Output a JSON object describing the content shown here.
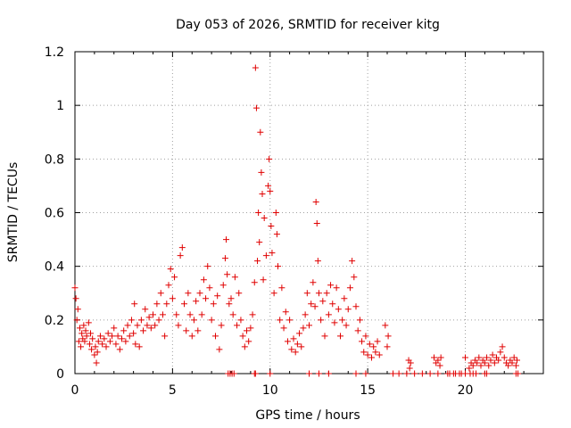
{
  "chart_data": {
    "type": "scatter",
    "title": "Day 053 of 2026, SRMTID for receiver kitg",
    "xlabel": "GPS time / hours",
    "ylabel": "SRMTID / TECUs",
    "xlim": [
      0,
      24
    ],
    "ylim": [
      0,
      1.2
    ],
    "xticks": [
      "0",
      "5",
      "10",
      "15",
      "20"
    ],
    "yticks": [
      "0",
      "0.2",
      "0.4",
      "0.6",
      "0.8",
      "1",
      "1.2"
    ],
    "grid": true,
    "marker": "+",
    "color": "#e00000",
    "series": [
      {
        "name": "SRMTID",
        "points": [
          [
            0.0,
            0.32
          ],
          [
            0.05,
            0.28
          ],
          [
            0.1,
            0.2
          ],
          [
            0.15,
            0.24
          ],
          [
            0.2,
            0.12
          ],
          [
            0.25,
            0.17
          ],
          [
            0.3,
            0.1
          ],
          [
            0.35,
            0.15
          ],
          [
            0.4,
            0.13
          ],
          [
            0.45,
            0.18
          ],
          [
            0.5,
            0.12
          ],
          [
            0.55,
            0.16
          ],
          [
            0.6,
            0.14
          ],
          [
            0.7,
            0.19
          ],
          [
            0.75,
            0.11
          ],
          [
            0.8,
            0.15
          ],
          [
            0.85,
            0.09
          ],
          [
            0.9,
            0.13
          ],
          [
            1.0,
            0.07
          ],
          [
            1.05,
            0.1
          ],
          [
            1.1,
            0.04
          ],
          [
            1.15,
            0.08
          ],
          [
            1.2,
            0.12
          ],
          [
            1.3,
            0.14
          ],
          [
            1.4,
            0.11
          ],
          [
            1.5,
            0.13
          ],
          [
            1.6,
            0.1
          ],
          [
            1.7,
            0.15
          ],
          [
            1.8,
            0.12
          ],
          [
            1.9,
            0.14
          ],
          [
            2.0,
            0.17
          ],
          [
            2.1,
            0.11
          ],
          [
            2.2,
            0.14
          ],
          [
            2.3,
            0.09
          ],
          [
            2.4,
            0.13
          ],
          [
            2.5,
            0.16
          ],
          [
            2.6,
            0.12
          ],
          [
            2.7,
            0.18
          ],
          [
            2.8,
            0.14
          ],
          [
            2.9,
            0.2
          ],
          [
            3.0,
            0.15
          ],
          [
            3.05,
            0.26
          ],
          [
            3.1,
            0.11
          ],
          [
            3.2,
            0.18
          ],
          [
            3.3,
            0.1
          ],
          [
            3.4,
            0.2
          ],
          [
            3.5,
            0.16
          ],
          [
            3.6,
            0.24
          ],
          [
            3.7,
            0.18
          ],
          [
            3.8,
            0.21
          ],
          [
            3.9,
            0.17
          ],
          [
            4.0,
            0.22
          ],
          [
            4.1,
            0.18
          ],
          [
            4.2,
            0.26
          ],
          [
            4.3,
            0.2
          ],
          [
            4.4,
            0.3
          ],
          [
            4.5,
            0.22
          ],
          [
            4.6,
            0.14
          ],
          [
            4.7,
            0.26
          ],
          [
            4.8,
            0.33
          ],
          [
            4.9,
            0.39
          ],
          [
            5.0,
            0.28
          ],
          [
            5.1,
            0.36
          ],
          [
            5.2,
            0.22
          ],
          [
            5.3,
            0.18
          ],
          [
            5.4,
            0.44
          ],
          [
            5.5,
            0.47
          ],
          [
            5.6,
            0.26
          ],
          [
            5.7,
            0.16
          ],
          [
            5.8,
            0.3
          ],
          [
            5.9,
            0.22
          ],
          [
            6.0,
            0.14
          ],
          [
            6.1,
            0.2
          ],
          [
            6.2,
            0.27
          ],
          [
            6.3,
            0.16
          ],
          [
            6.4,
            0.3
          ],
          [
            6.5,
            0.22
          ],
          [
            6.6,
            0.35
          ],
          [
            6.7,
            0.28
          ],
          [
            6.8,
            0.4
          ],
          [
            6.9,
            0.32
          ],
          [
            7.0,
            0.2
          ],
          [
            7.1,
            0.26
          ],
          [
            7.2,
            0.14
          ],
          [
            7.3,
            0.29
          ],
          [
            7.4,
            0.09
          ],
          [
            7.5,
            0.18
          ],
          [
            7.6,
            0.33
          ],
          [
            7.7,
            0.43
          ],
          [
            7.75,
            0.5
          ],
          [
            7.8,
            0.37
          ],
          [
            7.9,
            0.26
          ],
          [
            8.0,
            0.28
          ],
          [
            8.1,
            0.22
          ],
          [
            8.2,
            0.36
          ],
          [
            8.3,
            0.18
          ],
          [
            8.4,
            0.3
          ],
          [
            8.5,
            0.2
          ],
          [
            8.6,
            0.14
          ],
          [
            8.7,
            0.1
          ],
          [
            8.8,
            0.16
          ],
          [
            8.9,
            0.12
          ],
          [
            9.0,
            0.17
          ],
          [
            9.1,
            0.22
          ],
          [
            9.2,
            0.34
          ],
          [
            9.25,
            1.14
          ],
          [
            9.3,
            0.99
          ],
          [
            9.35,
            0.42
          ],
          [
            9.4,
            0.6
          ],
          [
            9.45,
            0.49
          ],
          [
            9.5,
            0.9
          ],
          [
            9.55,
            0.75
          ],
          [
            9.6,
            0.67
          ],
          [
            9.65,
            0.35
          ],
          [
            9.7,
            0.58
          ],
          [
            9.8,
            0.44
          ],
          [
            9.9,
            0.7
          ],
          [
            9.95,
            0.8
          ],
          [
            10.0,
            0.68
          ],
          [
            10.05,
            0.55
          ],
          [
            10.1,
            0.45
          ],
          [
            10.2,
            0.3
          ],
          [
            10.3,
            0.6
          ],
          [
            10.35,
            0.52
          ],
          [
            10.4,
            0.4
          ],
          [
            10.5,
            0.2
          ],
          [
            10.6,
            0.32
          ],
          [
            10.7,
            0.17
          ],
          [
            10.8,
            0.23
          ],
          [
            10.9,
            0.12
          ],
          [
            11.0,
            0.2
          ],
          [
            11.1,
            0.09
          ],
          [
            11.2,
            0.13
          ],
          [
            11.3,
            0.08
          ],
          [
            11.4,
            0.11
          ],
          [
            11.5,
            0.15
          ],
          [
            11.6,
            0.1
          ],
          [
            11.7,
            0.17
          ],
          [
            11.8,
            0.22
          ],
          [
            11.9,
            0.3
          ],
          [
            12.0,
            0.18
          ],
          [
            12.1,
            0.26
          ],
          [
            12.2,
            0.34
          ],
          [
            12.3,
            0.25
          ],
          [
            12.35,
            0.64
          ],
          [
            12.4,
            0.56
          ],
          [
            12.45,
            0.42
          ],
          [
            12.5,
            0.3
          ],
          [
            12.6,
            0.2
          ],
          [
            12.7,
            0.27
          ],
          [
            12.8,
            0.14
          ],
          [
            12.9,
            0.3
          ],
          [
            13.0,
            0.22
          ],
          [
            13.1,
            0.33
          ],
          [
            13.2,
            0.26
          ],
          [
            13.3,
            0.19
          ],
          [
            13.4,
            0.32
          ],
          [
            13.5,
            0.24
          ],
          [
            13.6,
            0.14
          ],
          [
            13.7,
            0.2
          ],
          [
            13.8,
            0.28
          ],
          [
            13.9,
            0.18
          ],
          [
            14.0,
            0.24
          ],
          [
            14.1,
            0.32
          ],
          [
            14.2,
            0.42
          ],
          [
            14.3,
            0.36
          ],
          [
            14.4,
            0.25
          ],
          [
            14.5,
            0.16
          ],
          [
            14.6,
            0.2
          ],
          [
            14.7,
            0.12
          ],
          [
            14.8,
            0.08
          ],
          [
            14.9,
            0.14
          ],
          [
            15.0,
            0.07
          ],
          [
            15.1,
            0.11
          ],
          [
            15.2,
            0.06
          ],
          [
            15.3,
            0.1
          ],
          [
            15.4,
            0.08
          ],
          [
            15.5,
            0.12
          ],
          [
            15.6,
            0.07
          ],
          [
            15.9,
            0.18
          ],
          [
            16.0,
            0.1
          ],
          [
            16.05,
            0.14
          ],
          [
            17.1,
            0.05
          ],
          [
            17.15,
            0.02
          ],
          [
            17.2,
            0.04
          ],
          [
            18.4,
            0.06
          ],
          [
            18.5,
            0.04
          ],
          [
            18.6,
            0.05
          ],
          [
            18.7,
            0.03
          ],
          [
            18.75,
            0.06
          ],
          [
            20.0,
            0.06
          ],
          [
            20.2,
            0.02
          ],
          [
            20.3,
            0.04
          ],
          [
            20.4,
            0.03
          ],
          [
            20.5,
            0.05
          ],
          [
            20.6,
            0.04
          ],
          [
            20.7,
            0.06
          ],
          [
            20.8,
            0.03
          ],
          [
            20.9,
            0.05
          ],
          [
            21.0,
            0.04
          ],
          [
            21.1,
            0.06
          ],
          [
            21.2,
            0.03
          ],
          [
            21.3,
            0.05
          ],
          [
            21.4,
            0.07
          ],
          [
            21.5,
            0.04
          ],
          [
            21.6,
            0.06
          ],
          [
            21.7,
            0.05
          ],
          [
            21.8,
            0.08
          ],
          [
            21.9,
            0.1
          ],
          [
            22.0,
            0.06
          ],
          [
            22.1,
            0.04
          ],
          [
            22.2,
            0.03
          ],
          [
            22.3,
            0.05
          ],
          [
            22.4,
            0.04
          ],
          [
            22.5,
            0.06
          ],
          [
            22.6,
            0.03
          ],
          [
            22.65,
            0.05
          ],
          [
            7.85,
            0.0
          ],
          [
            7.95,
            0.0
          ],
          [
            8.05,
            0.0
          ],
          [
            8.15,
            0.0
          ],
          [
            9.2,
            0.0
          ],
          [
            9.25,
            0.0
          ],
          [
            10.0,
            0.0
          ],
          [
            12.0,
            0.0
          ],
          [
            12.5,
            0.0
          ],
          [
            13.0,
            0.0
          ],
          [
            14.4,
            0.0
          ],
          [
            14.9,
            0.0
          ],
          [
            16.3,
            0.0
          ],
          [
            16.6,
            0.0
          ],
          [
            17.0,
            0.0
          ],
          [
            17.4,
            0.0
          ],
          [
            17.8,
            0.0
          ],
          [
            18.2,
            0.0
          ],
          [
            18.6,
            0.0
          ],
          [
            19.1,
            0.0
          ],
          [
            19.2,
            0.0
          ],
          [
            19.4,
            0.0
          ],
          [
            19.5,
            0.0
          ],
          [
            19.7,
            0.0
          ],
          [
            19.8,
            0.0
          ],
          [
            20.0,
            0.0
          ],
          [
            20.25,
            0.0
          ],
          [
            20.4,
            0.0
          ],
          [
            20.55,
            0.0
          ],
          [
            21.0,
            0.0
          ],
          [
            21.1,
            0.0
          ],
          [
            22.6,
            0.0
          ],
          [
            22.7,
            0.0
          ]
        ]
      }
    ]
  }
}
